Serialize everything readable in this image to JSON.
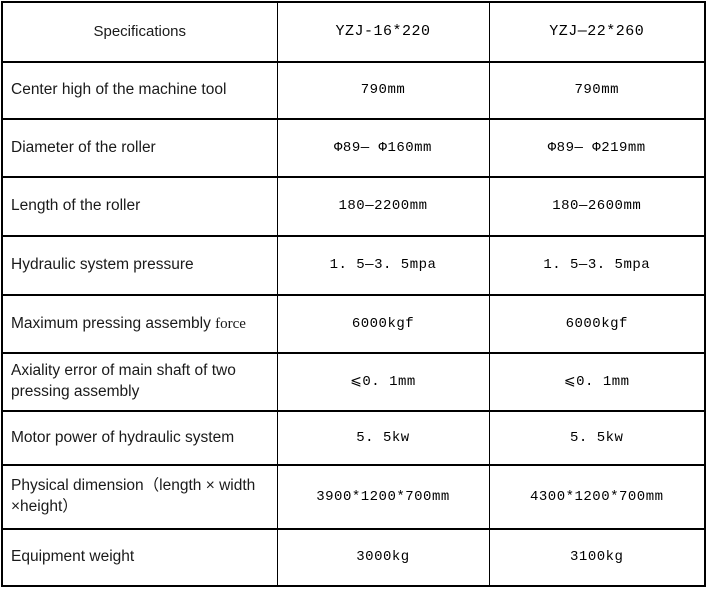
{
  "table": {
    "columns": [
      {
        "label": "Specifications"
      },
      {
        "label": "YZJ-16*220"
      },
      {
        "label": "YZJ—22*260"
      }
    ],
    "rows": [
      {
        "spec": "Center high of the machine tool",
        "v1": "790mm",
        "v2": "790mm"
      },
      {
        "spec": "Diameter of the roller",
        "v1": "Φ89— Φ160mm",
        "v2": "Φ89— Φ219mm"
      },
      {
        "spec": "Length of the roller",
        "v1": "180—2200mm",
        "v2": "180—2600mm"
      },
      {
        "spec": "Hydraulic system pressure",
        "v1": "1. 5—3. 5mpa",
        "v2": "1. 5—3. 5mpa"
      },
      {
        "spec": "Maximum pressing assembly ",
        "spec_serif": "force",
        "v1": "6000kgf",
        "v2": "6000kgf"
      },
      {
        "spec": "Axiality error of main shaft of two pressing assembly",
        "v1": "⩽0. 1mm",
        "v2": "⩽0. 1mm"
      },
      {
        "spec": "Motor power of hydraulic system",
        "v1": "5. 5kw",
        "v2": "5. 5kw"
      },
      {
        "spec": "Physical dimension（length × width ×height）",
        "v1": "3900*1200*700mm",
        "v2": "4300*1200*700mm"
      },
      {
        "spec": "Equipment weight",
        "v1": "3000kg",
        "v2": "3100kg"
      }
    ]
  }
}
